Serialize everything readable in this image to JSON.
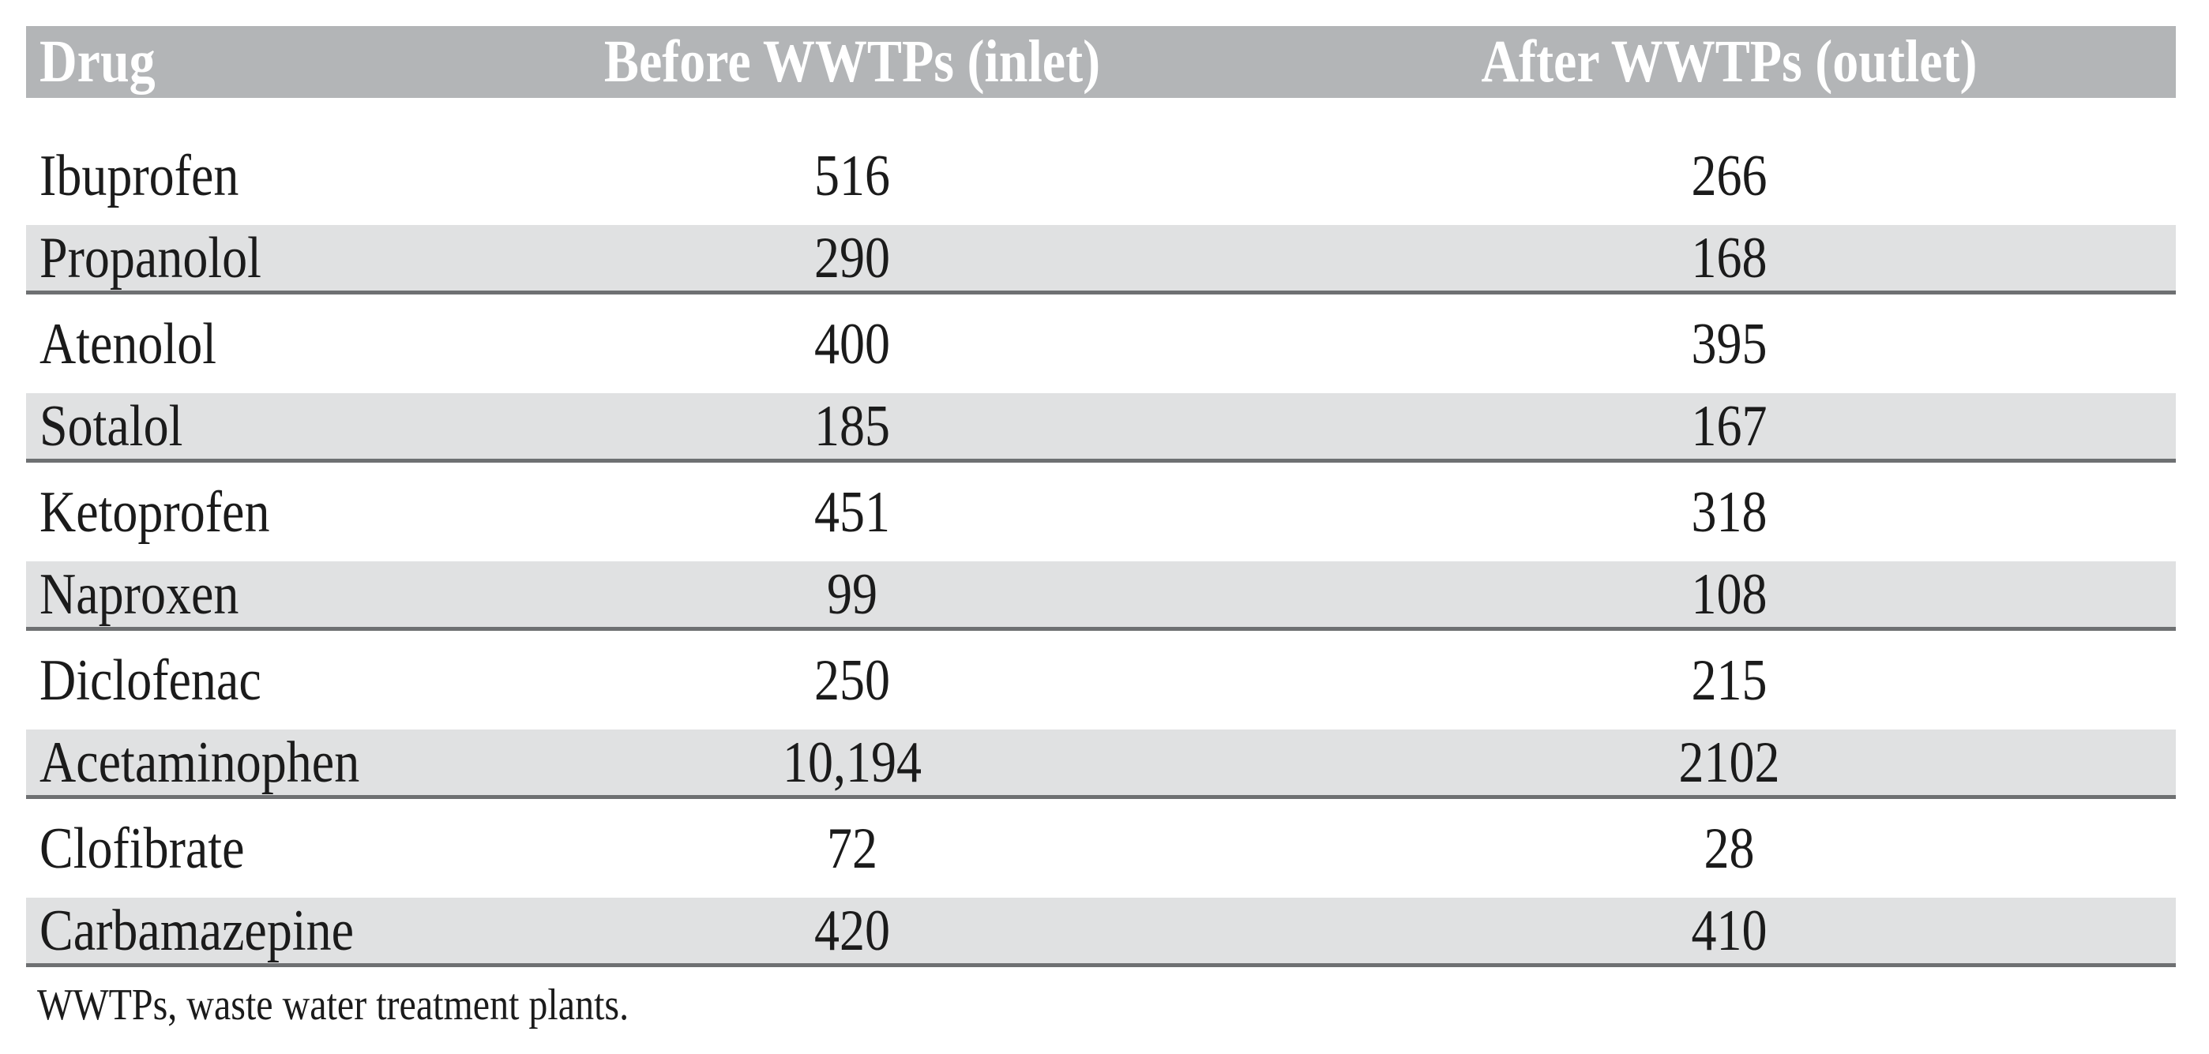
{
  "table": {
    "columns": [
      {
        "label": "Drug",
        "align": "left"
      },
      {
        "label": "Before WWTPs (inlet)",
        "align": "center"
      },
      {
        "label": "After WWTPs (outlet)",
        "align": "center"
      }
    ],
    "rows": [
      {
        "drug": "Ibuprofen",
        "inlet": "516",
        "outlet": "266"
      },
      {
        "drug": "Propanolol",
        "inlet": "290",
        "outlet": "168"
      },
      {
        "drug": "Atenolol",
        "inlet": "400",
        "outlet": "395"
      },
      {
        "drug": "Sotalol",
        "inlet": "185",
        "outlet": "167"
      },
      {
        "drug": "Ketoprofen",
        "inlet": "451",
        "outlet": "318"
      },
      {
        "drug": "Naproxen",
        "inlet": "99",
        "outlet": "108"
      },
      {
        "drug": "Diclofenac",
        "inlet": "250",
        "outlet": "215"
      },
      {
        "drug": "Acetaminophen",
        "inlet": "10,194",
        "outlet": "2102"
      },
      {
        "drug": "Clofibrate",
        "inlet": "72",
        "outlet": "28"
      },
      {
        "drug": "Carbamazepine",
        "inlet": "420",
        "outlet": "410"
      }
    ],
    "footnote": "WWTPs, waste water treatment plants."
  },
  "chart_data": {
    "type": "table",
    "title": "",
    "columns": [
      "Drug",
      "Before WWTPs (inlet)",
      "After WWTPs (outlet)"
    ],
    "rows": [
      [
        "Ibuprofen",
        516,
        266
      ],
      [
        "Propanolol",
        290,
        168
      ],
      [
        "Atenolol",
        400,
        395
      ],
      [
        "Sotalol",
        185,
        167
      ],
      [
        "Ketoprofen",
        451,
        318
      ],
      [
        "Naproxen",
        99,
        108
      ],
      [
        "Diclofenac",
        250,
        215
      ],
      [
        "Acetaminophen",
        10194,
        2102
      ],
      [
        "Clofibrate",
        72,
        28
      ],
      [
        "Carbamazepine",
        420,
        410
      ]
    ],
    "footnote": "WWTPs, waste water treatment plants."
  },
  "colors": {
    "header_bg": "#b3b5b7",
    "row_alt_bg": "#e0e1e2",
    "rule": "#6e7072",
    "text": "#1b1b1b",
    "header_text": "#ffffff"
  }
}
